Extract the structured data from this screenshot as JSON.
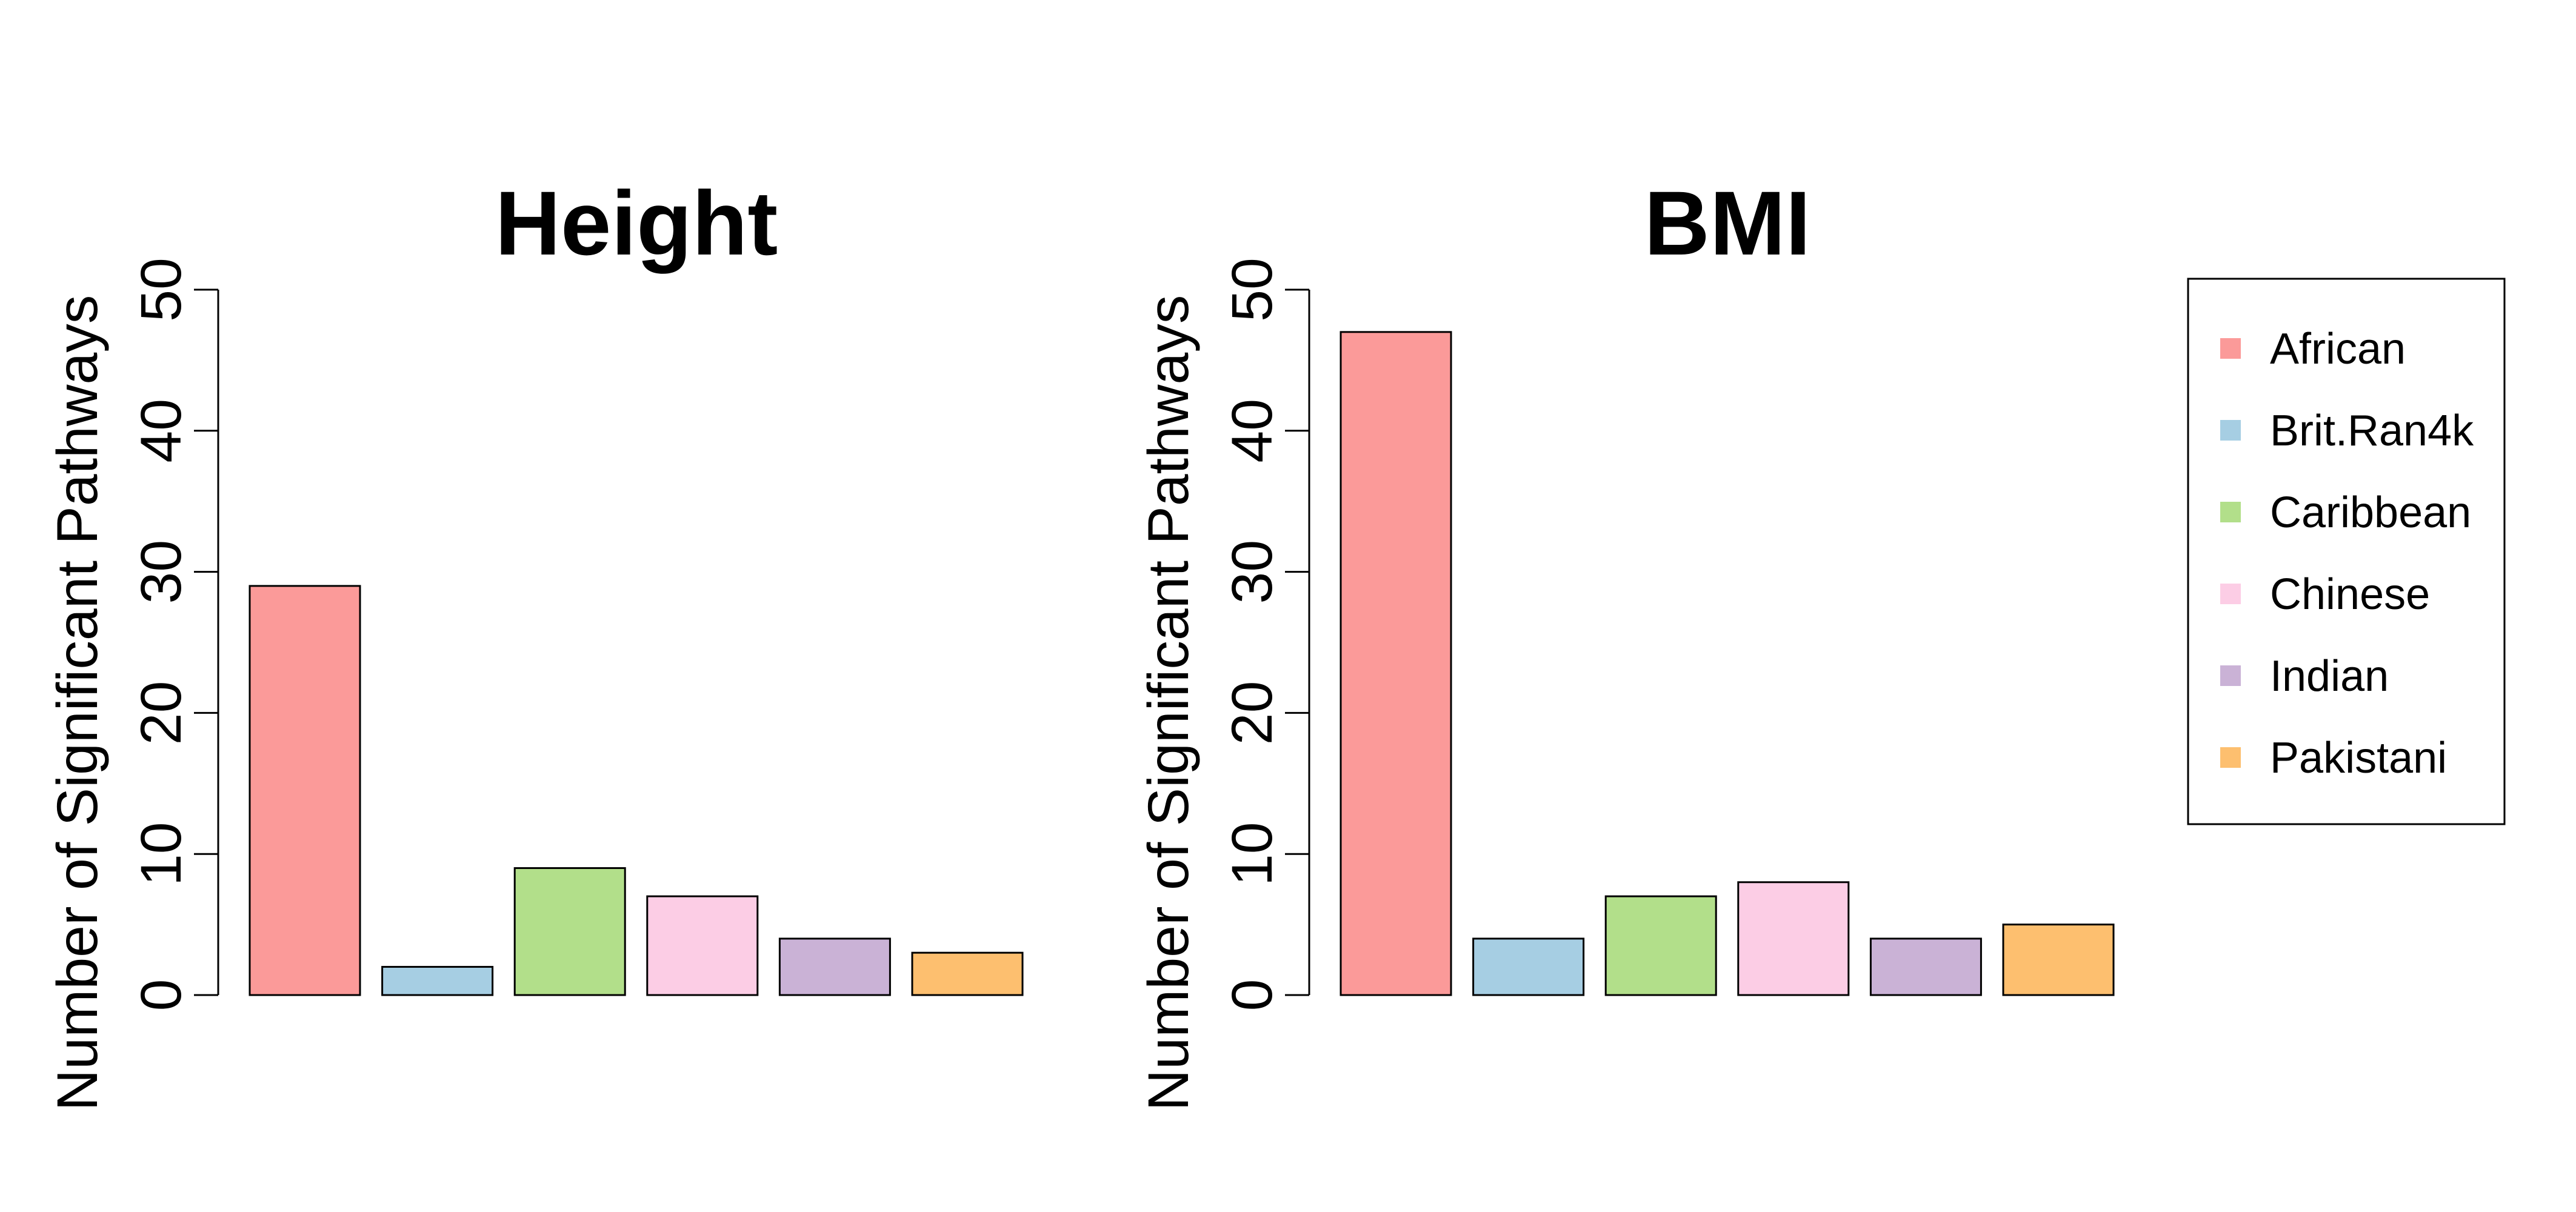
{
  "chart_data": [
    {
      "type": "bar",
      "title": "Height",
      "xlabel": "",
      "ylabel": "Number of Significant Pathways",
      "ylim": [
        0,
        50
      ],
      "yticks": [
        0,
        10,
        20,
        30,
        40,
        50
      ],
      "categories": [
        "African",
        "Brit.Ran4k",
        "Caribbean",
        "Chinese",
        "Indian",
        "Pakistani"
      ],
      "values": [
        29,
        2,
        9,
        7,
        4,
        3
      ],
      "grid": false
    },
    {
      "type": "bar",
      "title": "BMI",
      "xlabel": "",
      "ylabel": "Number of Significant Pathways",
      "ylim": [
        0,
        50
      ],
      "yticks": [
        0,
        10,
        20,
        30,
        40,
        50
      ],
      "categories": [
        "African",
        "Brit.Ran4k",
        "Caribbean",
        "Chinese",
        "Indian",
        "Pakistani"
      ],
      "values": [
        47,
        4,
        7,
        8,
        4,
        5
      ],
      "grid": false
    }
  ],
  "legend": {
    "placement": "right",
    "items": [
      {
        "label": "African",
        "color": "#FB9A99"
      },
      {
        "label": "Brit.Ran4k",
        "color": "#A6CEE3"
      },
      {
        "label": "Caribbean",
        "color": "#B2DF8A"
      },
      {
        "label": "Chinese",
        "color": "#FCCDE5"
      },
      {
        "label": "Indian",
        "color": "#CAB2D6"
      },
      {
        "label": "Pakistani",
        "color": "#FDBF6F"
      }
    ]
  }
}
